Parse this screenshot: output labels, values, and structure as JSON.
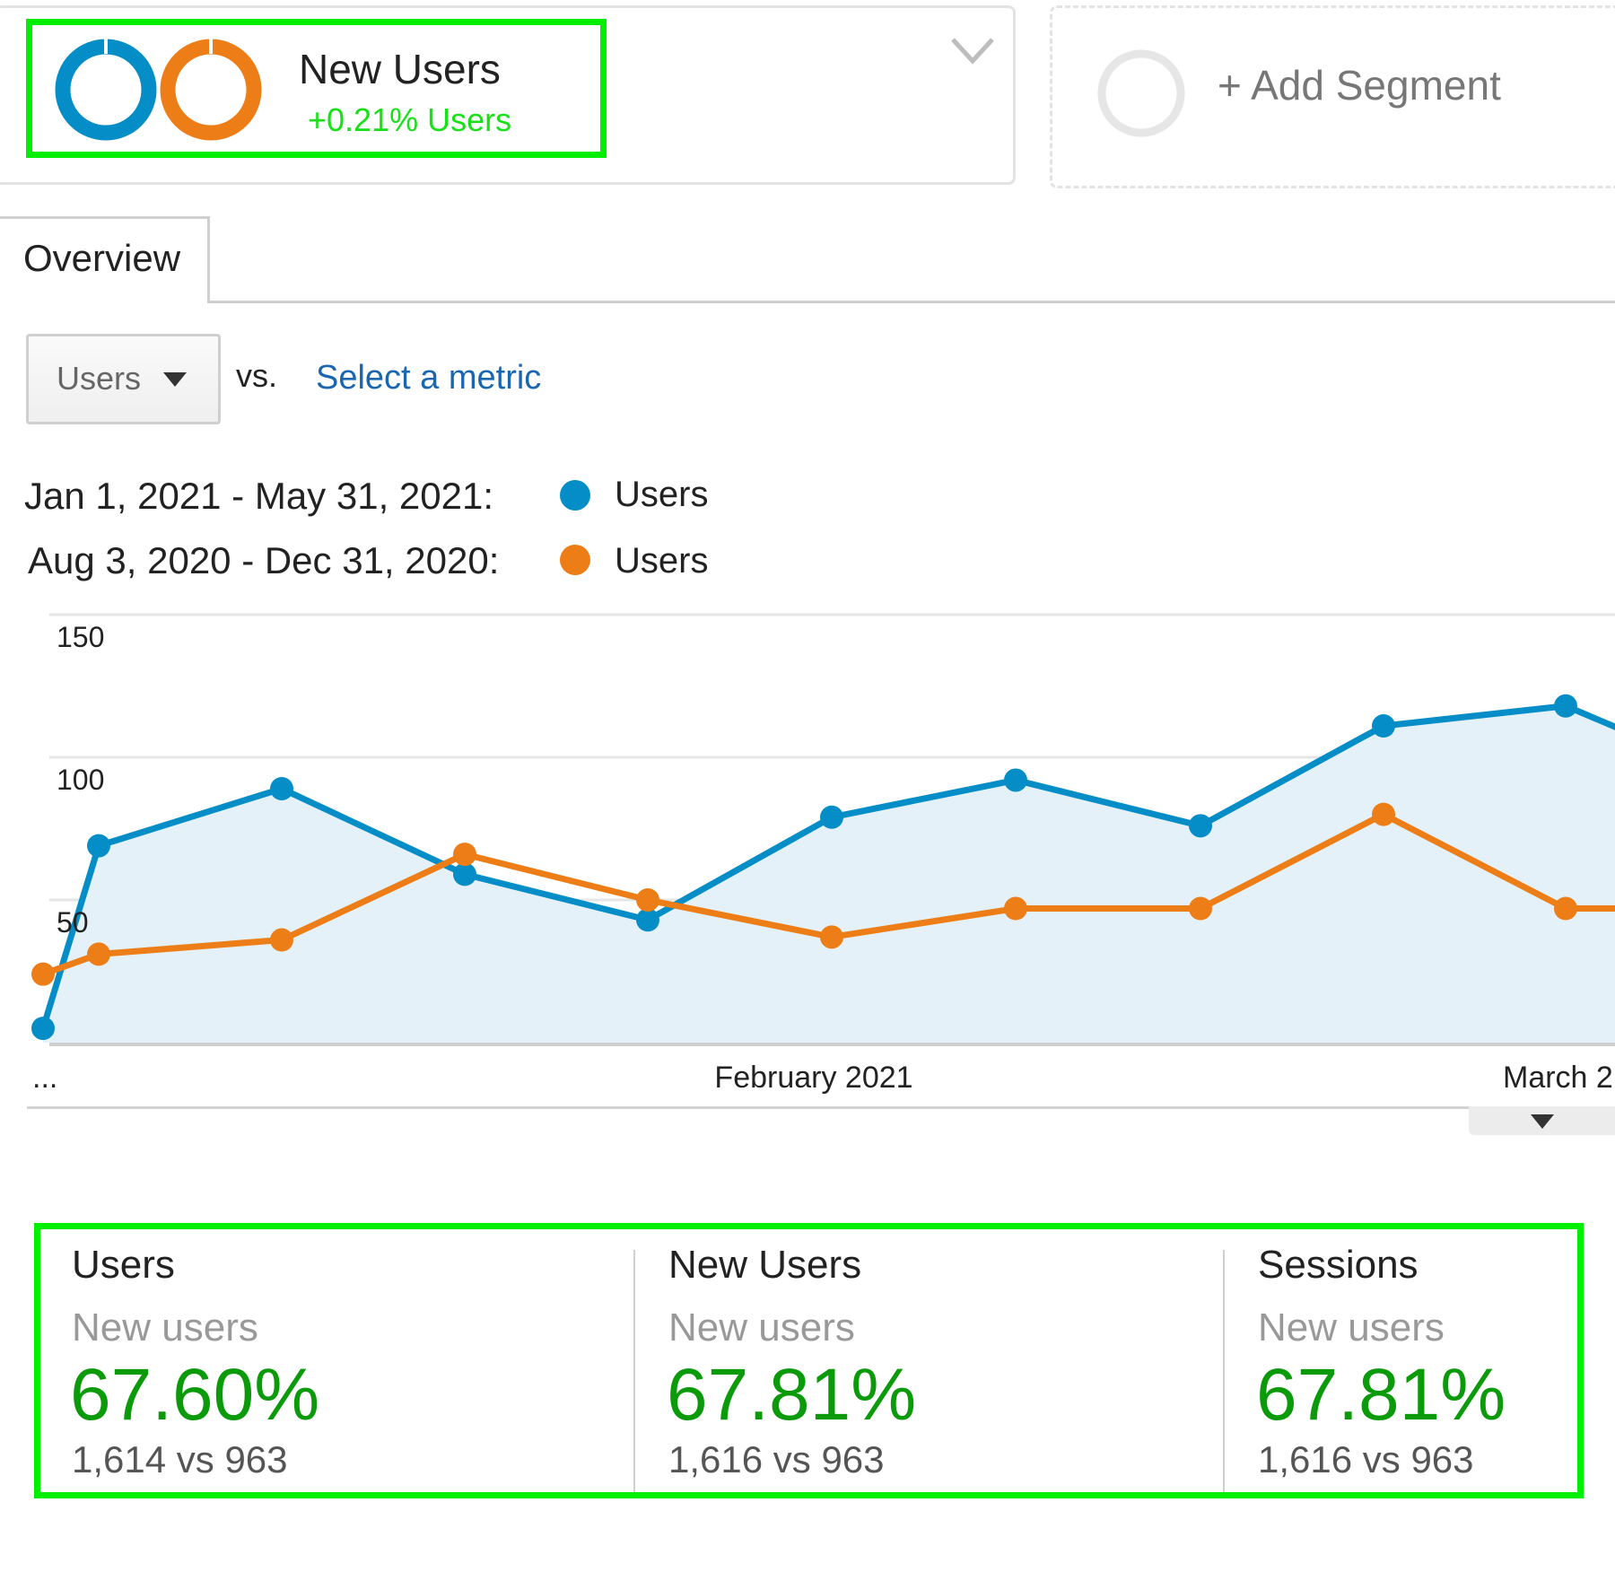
{
  "segment": {
    "title": "New Users",
    "delta": "+0.21% Users",
    "colors": {
      "primary": "#058dc7",
      "comparison": "#ed7e17",
      "highlight": "#00ee00"
    }
  },
  "add_segment": {
    "label": "+ Add Segment"
  },
  "tabs": [
    {
      "label": "Overview",
      "active": true
    }
  ],
  "metric_selector": {
    "selected": "Users",
    "vs": "vs.",
    "select_link": "Select a metric"
  },
  "legend": [
    {
      "range": "Jan 1, 2021 - May 31, 2021:",
      "series": "Users",
      "color": "#058dc7"
    },
    {
      "range": "Aug 3, 2020 - Dec 31, 2020:",
      "series": "Users",
      "color": "#ed7e17"
    }
  ],
  "chart_data": {
    "type": "line",
    "y_ticks": [
      "150",
      "100",
      "50"
    ],
    "ylim": [
      0,
      150
    ],
    "x_labels": [
      "...",
      "February 2021",
      "March 2"
    ],
    "grid": true,
    "series": [
      {
        "name": "Users",
        "color": "#058dc7",
        "area": true,
        "values": [
          5,
          69,
          89,
          59,
          43,
          79,
          92,
          76,
          111,
          118,
          108
        ]
      },
      {
        "name": "Users",
        "color": "#ed7e17",
        "area": false,
        "values": [
          24,
          31,
          36,
          66,
          50,
          37,
          47,
          47,
          80,
          47,
          47
        ]
      }
    ]
  },
  "scorecards": [
    {
      "title": "Users",
      "subtitle": "New users",
      "value": "67.60%",
      "comparison": "1,614 vs 963"
    },
    {
      "title": "New Users",
      "subtitle": "New users",
      "value": "67.81%",
      "comparison": "1,616 vs 963"
    },
    {
      "title": "Sessions",
      "subtitle": "New users",
      "value": "67.81%",
      "comparison": "1,616 vs 963"
    }
  ]
}
